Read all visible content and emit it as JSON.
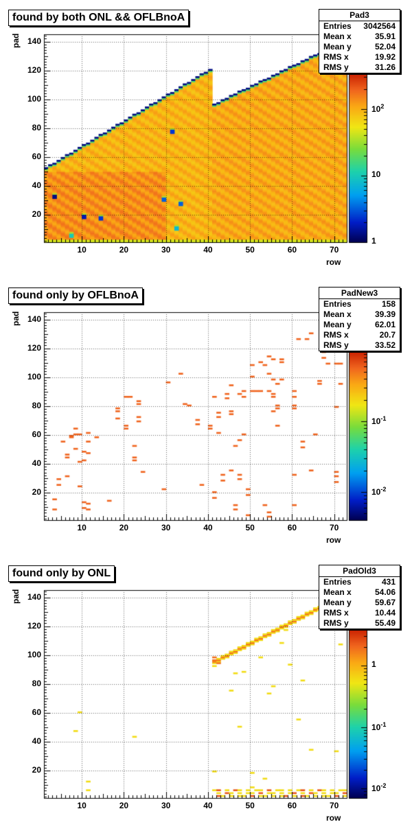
{
  "chart_data": [
    {
      "type": "heatmap",
      "title": "found by both ONL && OFLBnoA",
      "xlabel": "row",
      "ylabel": "pad",
      "xlim": [
        1,
        73
      ],
      "ylim": [
        1,
        145
      ],
      "xticks": [
        "10",
        "20",
        "30",
        "40",
        "50",
        "60",
        "70"
      ],
      "yticks": [
        "20",
        "40",
        "60",
        "80",
        "100",
        "120",
        "140"
      ],
      "zscale": "log",
      "zlim": [
        1,
        350
      ],
      "zticks": [
        "1",
        "10",
        "10^2"
      ],
      "grid": true,
      "stats": {
        "name": "Pad3",
        "entries": [
          {
            "label": "Entries",
            "value": "3042564"
          },
          {
            "label": "Mean x",
            "value": "35.91"
          },
          {
            "label": "Mean y",
            "value": "52.04"
          },
          {
            "label": "RMS x",
            "value": "19.92"
          },
          {
            "label": "RMS y",
            "value": "31.26"
          }
        ]
      },
      "bands": [
        {
          "row_start": 1,
          "row_end": 40,
          "pad_max_start": 52,
          "pad_max_end": 120,
          "level": 0.78
        },
        {
          "row_start": 41,
          "row_end": 72,
          "pad_max_start": 96,
          "pad_max_end": 140,
          "level": 0.8
        }
      ],
      "hot_cells": [
        {
          "row": 3,
          "pad": 31,
          "level": 0.05
        },
        {
          "row": 10,
          "pad": 17,
          "level": 0.1
        },
        {
          "row": 14,
          "pad": 16,
          "level": 0.15
        },
        {
          "row": 29,
          "pad": 29,
          "level": 0.2
        },
        {
          "row": 31,
          "pad": 76,
          "level": 0.15
        },
        {
          "row": 33,
          "pad": 26,
          "level": 0.2
        },
        {
          "row": 32,
          "pad": 9,
          "level": 0.35
        },
        {
          "row": 7,
          "pad": 4,
          "level": 0.4
        }
      ]
    },
    {
      "type": "heatmap",
      "title": "found only by OFLBnoA",
      "xlabel": "row",
      "ylabel": "pad",
      "xlim": [
        1,
        73
      ],
      "ylim": [
        1,
        145
      ],
      "xticks": [
        "10",
        "20",
        "30",
        "40",
        "50",
        "60",
        "70"
      ],
      "yticks": [
        "20",
        "40",
        "60",
        "80",
        "100",
        "120",
        "140"
      ],
      "zscale": "log",
      "zlim": [
        0.004,
        1
      ],
      "zticks": [
        "10^-2",
        "10^-1"
      ],
      "grid": true,
      "stats": {
        "name": "PadNew3",
        "entries": [
          {
            "label": "Entries",
            "value": "158"
          },
          {
            "label": "Mean x",
            "value": "39.39"
          },
          {
            "label": "Mean y",
            "value": "62.01"
          },
          {
            "label": "RMS x",
            "value": "20.7"
          },
          {
            "label": "RMS y",
            "value": "33.52"
          }
        ]
      },
      "points": [
        [
          3,
          8
        ],
        [
          3,
          15
        ],
        [
          4,
          25
        ],
        [
          4,
          29
        ],
        [
          5,
          55
        ],
        [
          6,
          31
        ],
        [
          6,
          44
        ],
        [
          6,
          46
        ],
        [
          7,
          58
        ],
        [
          7,
          59
        ],
        [
          8,
          50
        ],
        [
          8,
          60
        ],
        [
          8,
          64
        ],
        [
          9,
          24
        ],
        [
          9,
          60
        ],
        [
          9,
          41
        ],
        [
          10,
          42
        ],
        [
          10,
          48
        ],
        [
          10,
          9
        ],
        [
          10,
          13
        ],
        [
          11,
          61
        ],
        [
          11,
          55
        ],
        [
          11,
          47
        ],
        [
          11,
          12
        ],
        [
          11,
          8
        ],
        [
          13,
          58
        ],
        [
          16,
          14
        ],
        [
          18,
          78
        ],
        [
          18,
          71
        ],
        [
          18,
          76
        ],
        [
          20,
          66
        ],
        [
          20,
          64
        ],
        [
          20,
          86
        ],
        [
          21,
          86
        ],
        [
          22,
          52
        ],
        [
          22,
          44
        ],
        [
          22,
          42
        ],
        [
          23,
          83
        ],
        [
          23,
          81
        ],
        [
          23,
          69
        ],
        [
          23,
          72
        ],
        [
          24,
          34
        ],
        [
          29,
          22
        ],
        [
          30,
          96
        ],
        [
          33,
          102
        ],
        [
          34,
          81
        ],
        [
          35,
          80
        ],
        [
          37,
          70
        ],
        [
          37,
          67
        ],
        [
          38,
          25
        ],
        [
          40,
          64
        ],
        [
          40,
          66
        ],
        [
          41,
          20
        ],
        [
          41,
          16
        ],
        [
          41,
          86
        ],
        [
          42,
          72
        ],
        [
          42,
          75
        ],
        [
          42,
          61
        ],
        [
          43,
          28
        ],
        [
          43,
          32
        ],
        [
          44,
          85
        ],
        [
          44,
          88
        ],
        [
          45,
          94
        ],
        [
          45,
          76
        ],
        [
          45,
          74
        ],
        [
          45,
          35
        ],
        [
          46,
          52
        ],
        [
          46,
          11
        ],
        [
          46,
          8
        ],
        [
          47,
          29
        ],
        [
          47,
          32
        ],
        [
          47,
          56
        ],
        [
          47,
          88
        ],
        [
          48,
          86
        ],
        [
          48,
          60
        ],
        [
          48,
          90
        ],
        [
          49,
          22
        ],
        [
          49,
          18
        ],
        [
          49,
          4
        ],
        [
          50,
          108
        ],
        [
          50,
          100
        ],
        [
          50,
          90
        ],
        [
          51,
          90
        ],
        [
          52,
          90
        ],
        [
          52,
          110
        ],
        [
          53,
          108
        ],
        [
          53,
          11
        ],
        [
          54,
          90
        ],
        [
          54,
          102
        ],
        [
          54,
          114
        ],
        [
          54,
          6
        ],
        [
          54,
          3
        ],
        [
          55,
          112
        ],
        [
          55,
          98
        ],
        [
          55,
          86
        ],
        [
          55,
          76
        ],
        [
          55,
          88
        ],
        [
          56,
          95
        ],
        [
          56,
          78
        ],
        [
          56,
          80
        ],
        [
          56,
          66
        ],
        [
          57,
          98
        ],
        [
          57,
          112
        ],
        [
          57,
          110
        ],
        [
          60,
          90
        ],
        [
          60,
          86
        ],
        [
          60,
          80
        ],
        [
          60,
          78
        ],
        [
          61,
          126
        ],
        [
          60,
          32
        ],
        [
          60,
          11
        ],
        [
          62,
          51
        ],
        [
          62,
          55
        ],
        [
          63,
          126
        ],
        [
          64,
          35
        ],
        [
          64,
          130
        ],
        [
          65,
          60
        ],
        [
          66,
          97
        ],
        [
          66,
          95
        ],
        [
          67,
          117
        ],
        [
          67,
          113
        ],
        [
          68,
          109
        ],
        [
          70,
          109
        ],
        [
          70,
          34
        ],
        [
          70,
          31
        ],
        [
          70,
          27
        ],
        [
          70,
          79
        ],
        [
          71,
          95
        ],
        [
          71,
          109
        ]
      ]
    },
    {
      "type": "heatmap",
      "title": "found only by ONL",
      "xlabel": "row",
      "ylabel": "pad",
      "xlim": [
        1,
        73
      ],
      "ylim": [
        1,
        145
      ],
      "xticks": [
        "10",
        "20",
        "30",
        "40",
        "50",
        "60",
        "70"
      ],
      "yticks": [
        "20",
        "40",
        "60",
        "80",
        "100",
        "120",
        "140"
      ],
      "zscale": "log",
      "zlim": [
        0.007,
        4
      ],
      "zticks": [
        "10^-2",
        "10^-1",
        "1"
      ],
      "grid": true,
      "stats": {
        "name": "PadOld3",
        "entries": [
          {
            "label": "Entries",
            "value": "431"
          },
          {
            "label": "Mean x",
            "value": "54.06"
          },
          {
            "label": "Mean y",
            "value": "59.67"
          },
          {
            "label": "RMS x",
            "value": "10.44"
          },
          {
            "label": "RMS y",
            "value": "55.49"
          }
        ]
      },
      "diagonal": {
        "row_start": 41,
        "row_end": 72,
        "pad_start": 94,
        "pad_end": 140
      },
      "points": [
        [
          8,
          47
        ],
        [
          9,
          60
        ],
        [
          11,
          12
        ],
        [
          11,
          6
        ],
        [
          22,
          43
        ],
        [
          41,
          19
        ],
        [
          41,
          92
        ],
        [
          45,
          75
        ],
        [
          46,
          87
        ],
        [
          47,
          50
        ],
        [
          48,
          88
        ],
        [
          50,
          8
        ],
        [
          50,
          18
        ],
        [
          52,
          98
        ],
        [
          53,
          14
        ],
        [
          54,
          73
        ],
        [
          55,
          78
        ],
        [
          57,
          108
        ],
        [
          58,
          117
        ],
        [
          59,
          93
        ],
        [
          61,
          55
        ],
        [
          62,
          82
        ],
        [
          64,
          34
        ],
        [
          70,
          33
        ],
        [
          71,
          107
        ]
      ]
    }
  ]
}
